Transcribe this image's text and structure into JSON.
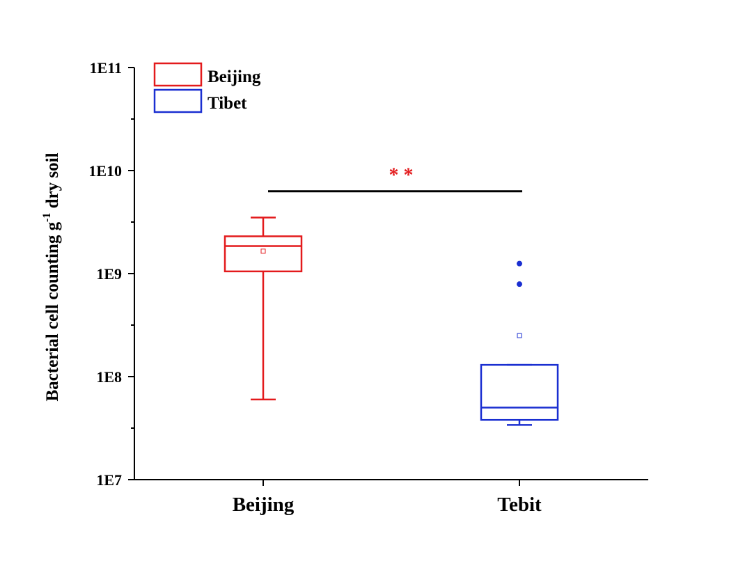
{
  "chart_data": {
    "type": "box",
    "title": "",
    "xlabel": "",
    "ylabel": "Bacterial cell counting g",
    "ylabel_superscript": "-1",
    "ylabel_suffix": " dry soil",
    "yscale": "log",
    "ylim": [
      10000000,
      100000000000
    ],
    "yticks": [
      {
        "value": 10000000,
        "label": "1E7"
      },
      {
        "value": 100000000,
        "label": "1E8"
      },
      {
        "value": 1000000000,
        "label": "1E9"
      },
      {
        "value": 10000000000,
        "label": "1E10"
      },
      {
        "value": 100000000000,
        "label": "1E11"
      }
    ],
    "categories": [
      "Beijing",
      "Tebit"
    ],
    "series": [
      {
        "name": "Beijing",
        "color": "#e31a1c",
        "whisker_low": 60000000,
        "q1": 1050000000,
        "median": 1850000000,
        "q3": 2300000000,
        "whisker_high": 3500000000,
        "mean": 1650000000,
        "outliers": []
      },
      {
        "name": "Tibet",
        "color": "#1a2fd1",
        "whisker_low": 34000000,
        "q1": 38000000,
        "median": 50000000,
        "q3": 130000000,
        "whisker_high": 130000000,
        "mean": 250000000,
        "outliers": [
          790000000,
          1250000000
        ]
      }
    ],
    "significance": {
      "label": "* *",
      "y": 6300000000,
      "color": "#e31a1c"
    },
    "legend": {
      "position": "top-left"
    }
  }
}
